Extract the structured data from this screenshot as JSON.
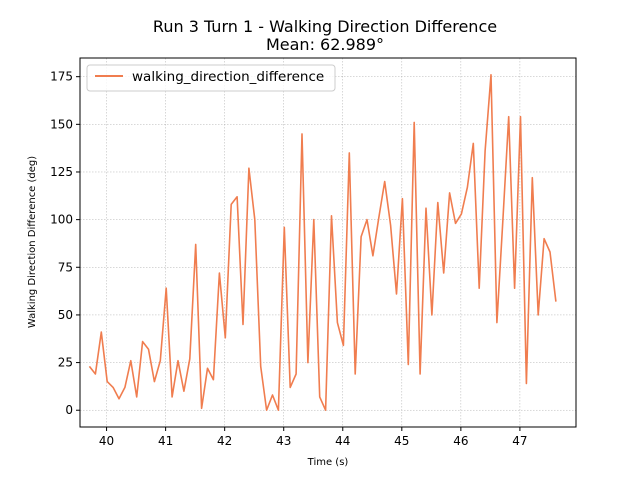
{
  "chart_data": {
    "type": "line",
    "title": "Run 3 Turn 1 - Walking Direction Difference",
    "subtitle": "Mean: 62.989°",
    "xlabel": "Time (s)",
    "ylabel": "Walking Direction Difference (deg)",
    "xlim": [
      39.55,
      47.95
    ],
    "ylim": [
      -8.8,
      184.8
    ],
    "xticks": [
      40,
      41,
      42,
      43,
      44,
      45,
      46,
      47
    ],
    "yticks": [
      0,
      25,
      50,
      75,
      100,
      125,
      150,
      175
    ],
    "grid": true,
    "legend_position": "top-left",
    "series": [
      {
        "name": "walking_direction_difference",
        "color": "#f07d4f",
        "x": [
          39.71,
          39.81,
          39.91,
          40.01,
          40.11,
          40.21,
          40.31,
          40.41,
          40.51,
          40.61,
          40.71,
          40.81,
          40.91,
          41.01,
          41.11,
          41.21,
          41.31,
          41.41,
          41.51,
          41.61,
          41.71,
          41.81,
          41.91,
          42.01,
          42.11,
          42.21,
          42.31,
          42.41,
          42.51,
          42.61,
          42.71,
          42.81,
          42.91,
          43.01,
          43.11,
          43.21,
          43.31,
          43.41,
          43.51,
          43.61,
          43.71,
          43.81,
          43.91,
          44.01,
          44.11,
          44.21,
          44.31,
          44.41,
          44.51,
          44.61,
          44.71,
          44.81,
          44.91,
          45.01,
          45.11,
          45.21,
          45.31,
          45.41,
          45.51,
          45.61,
          45.71,
          45.81,
          45.91,
          46.01,
          46.11,
          46.21,
          46.31,
          46.41,
          46.51,
          46.61,
          46.71,
          46.81,
          46.91,
          47.01,
          47.11,
          47.21,
          47.31,
          47.41,
          47.51,
          47.61
        ],
        "values": [
          23,
          19,
          41,
          15,
          12,
          6,
          12,
          26,
          7,
          36,
          32,
          15,
          26,
          64,
          7,
          26,
          10,
          27,
          87,
          1,
          22,
          16,
          72,
          38,
          108,
          112,
          45,
          127,
          100,
          23,
          0,
          8,
          0,
          96,
          12,
          19,
          145,
          25,
          100,
          7,
          0,
          102,
          46,
          34,
          135,
          19,
          91,
          100,
          81,
          101,
          120,
          97,
          61,
          111,
          24,
          151,
          19,
          106,
          50,
          109,
          72,
          114,
          98,
          103,
          117,
          140,
          64,
          136,
          176,
          46,
          99,
          154,
          64,
          154,
          14,
          122,
          50,
          90,
          83,
          57
        ]
      }
    ]
  }
}
